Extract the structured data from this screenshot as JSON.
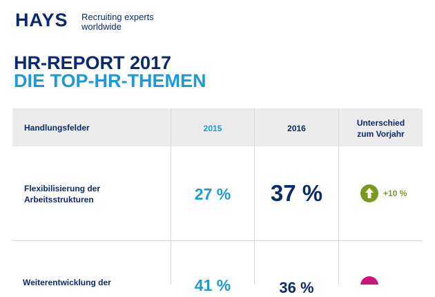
{
  "header": {
    "logo": "HAYS",
    "tagline": [
      "Recruiting experts",
      "worldwide"
    ]
  },
  "title": "HR-REPORT 2017",
  "subtitle": "DIE TOP-HR-THEMEN",
  "table": {
    "columns": [
      "Handlungsfelder",
      "2015",
      "2016",
      [
        "Unterschied",
        "zum Vorjahr"
      ]
    ],
    "rows": [
      [
        [
          "Flexibilisierung der",
          "Arbeitsstrukturen"
        ],
        "27 %",
        "37 %",
        "+10 %"
      ],
      [
        [
          "Weiterentwicklung der"
        ],
        "41 %",
        "36 %"
      ]
    ]
  }
}
